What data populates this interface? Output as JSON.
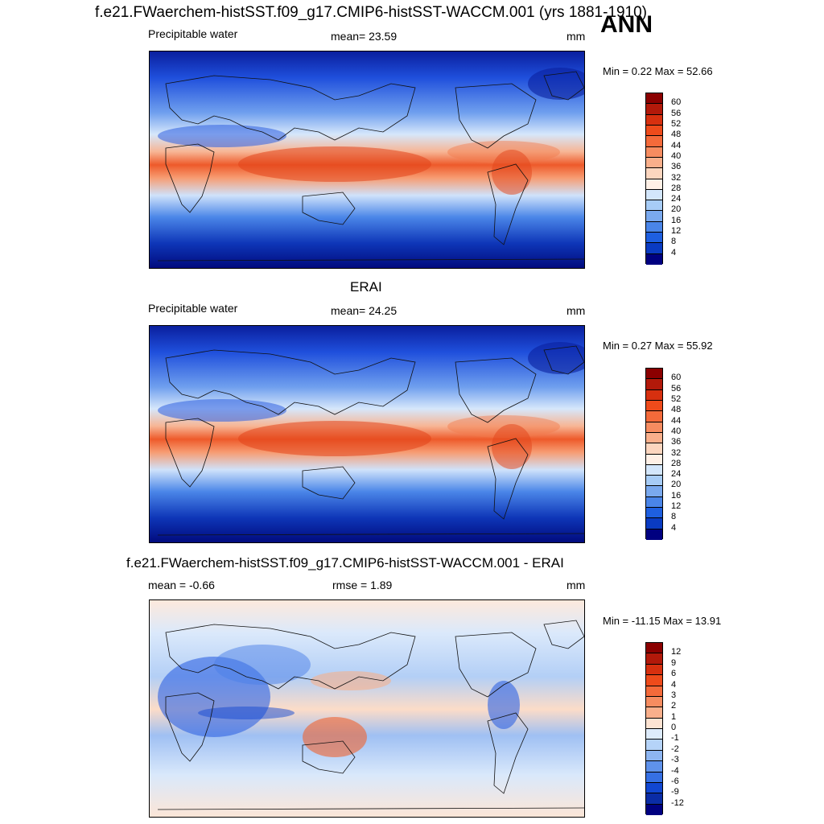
{
  "header": {
    "title": "f.e21.FWaerchem-histSST.f09_g17.CMIP6-histSST-WACCM.001 (yrs 1881-1910)",
    "season": "ANN"
  },
  "panels": [
    {
      "title": "",
      "variable": "Precipitable water",
      "stat": "mean=  23.59",
      "units": "mm",
      "minmax": "Min =   0.22 Max =  52.66",
      "kind": "abs",
      "colorbar": {
        "labels": [
          "60",
          "56",
          "52",
          "48",
          "44",
          "40",
          "36",
          "32",
          "28",
          "24",
          "20",
          "16",
          "12",
          "8",
          "4"
        ],
        "colors": [
          "#8b0000",
          "#b2190a",
          "#d7300f",
          "#ee4b1b",
          "#f46a3a",
          "#f68c60",
          "#f9af8b",
          "#fcd6bf",
          "#fff0e6",
          "#d3e6fb",
          "#a7ccf6",
          "#7aa9ee",
          "#4a85e8",
          "#1e5fe0",
          "#0a3bc2",
          "#000080"
        ]
      }
    },
    {
      "title": "ERAI",
      "variable": "Precipitable water",
      "stat": "mean=  24.25",
      "units": "mm",
      "minmax": "Min =   0.27 Max =  55.92",
      "kind": "abs",
      "colorbar": {
        "labels": [
          "60",
          "56",
          "52",
          "48",
          "44",
          "40",
          "36",
          "32",
          "28",
          "24",
          "20",
          "16",
          "12",
          "8",
          "4"
        ],
        "colors": [
          "#8b0000",
          "#b2190a",
          "#d7300f",
          "#ee4b1b",
          "#f46a3a",
          "#f68c60",
          "#f9af8b",
          "#fcd6bf",
          "#fff0e6",
          "#d3e6fb",
          "#a7ccf6",
          "#7aa9ee",
          "#4a85e8",
          "#1e5fe0",
          "#0a3bc2",
          "#000080"
        ]
      }
    },
    {
      "title": "f.e21.FWaerchem-histSST.f09_g17.CMIP6-histSST-WACCM.001 - ERAI",
      "variable": "mean =  -0.66",
      "stat": "rmse =    1.89",
      "units": "mm",
      "minmax": "Min = -11.15 Max =  13.91",
      "kind": "diff",
      "colorbar": {
        "labels": [
          "12",
          "9",
          "6",
          "4",
          "3",
          "2",
          "1",
          "0",
          "-1",
          "-2",
          "-3",
          "-4",
          "-6",
          "-9",
          "-12"
        ],
        "colors": [
          "#8b0000",
          "#b2190a",
          "#d7300f",
          "#ee4b1b",
          "#f46a3a",
          "#f68c60",
          "#f9af8b",
          "#fde3d2",
          "#ddebfb",
          "#b5d3f8",
          "#8db5f1",
          "#5f92eb",
          "#3670e4",
          "#1147d2",
          "#0a2ca6",
          "#000080"
        ]
      }
    }
  ]
}
